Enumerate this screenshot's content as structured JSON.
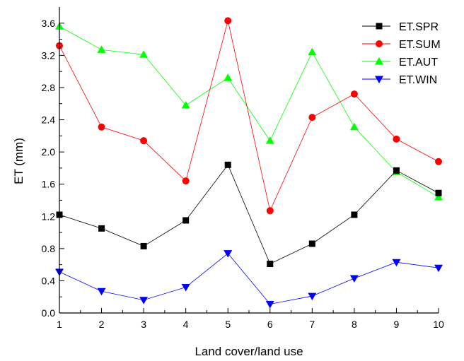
{
  "chart_data": {
    "type": "line",
    "xlabel": "Land cover/land use",
    "ylabel": "ET (mm)",
    "x": [
      1,
      2,
      3,
      4,
      5,
      6,
      7,
      8,
      9,
      10
    ],
    "xlim": [
      1,
      10
    ],
    "ylim": [
      0,
      3.8
    ],
    "xticks": [
      "1",
      "2",
      "3",
      "4",
      "5",
      "6",
      "7",
      "8",
      "9",
      "10"
    ],
    "yticks": [
      "0.0",
      "0.4",
      "0.8",
      "1.2",
      "1.6",
      "2.0",
      "2.4",
      "2.8",
      "3.2",
      "3.6"
    ],
    "grid": false,
    "legend_position": "top-right",
    "series": [
      {
        "name": "ET.SPR",
        "color": "#000000",
        "marker": "square",
        "values": [
          1.22,
          1.05,
          0.83,
          1.15,
          1.84,
          0.61,
          0.86,
          1.22,
          1.77,
          1.49
        ]
      },
      {
        "name": "ET.SUM",
        "color": "#ff0000",
        "marker": "circle",
        "values": [
          3.32,
          2.31,
          2.14,
          1.64,
          3.63,
          1.27,
          2.43,
          2.72,
          2.16,
          1.88
        ]
      },
      {
        "name": "ET.AUT",
        "color": "#00ff00",
        "marker": "triangle-up",
        "values": [
          3.56,
          3.27,
          3.21,
          2.58,
          2.92,
          2.14,
          3.24,
          2.31,
          1.75,
          1.44
        ]
      },
      {
        "name": "ET.WIN",
        "color": "#0000ff",
        "marker": "triangle-down",
        "values": [
          0.51,
          0.27,
          0.16,
          0.32,
          0.74,
          0.11,
          0.21,
          0.43,
          0.63,
          0.56
        ]
      }
    ]
  }
}
